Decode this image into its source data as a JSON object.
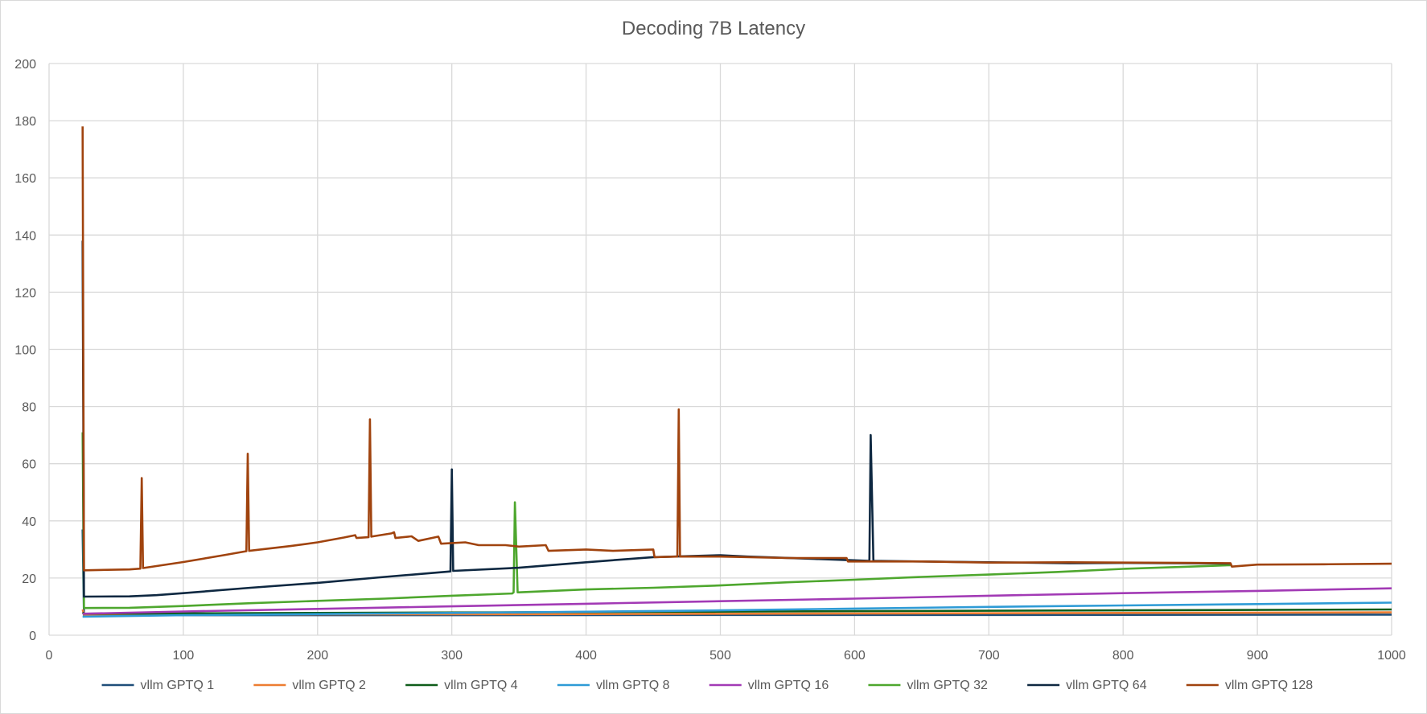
{
  "chart_data": {
    "type": "line",
    "title": "Decoding 7B Latency",
    "xlabel": "",
    "ylabel": "",
    "xlim": [
      0,
      1000
    ],
    "ylim": [
      0,
      200
    ],
    "x_ticks": [
      0,
      100,
      200,
      300,
      400,
      500,
      600,
      700,
      800,
      900,
      1000
    ],
    "y_ticks": [
      0,
      20,
      40,
      60,
      80,
      100,
      120,
      140,
      160,
      180,
      200
    ],
    "grid": true,
    "legend_position": "bottom",
    "series": [
      {
        "name": "vllm GPTQ  1",
        "color": "#1f4e79",
        "points": [
          [
            25,
            37
          ],
          [
            26,
            7
          ],
          [
            100,
            7
          ],
          [
            300,
            7
          ],
          [
            500,
            7.1
          ],
          [
            700,
            7.1
          ],
          [
            1000,
            7.2
          ]
        ]
      },
      {
        "name": "vllm GPTQ  2",
        "color": "#ed7d31",
        "points": [
          [
            25,
            9
          ],
          [
            26,
            7.2
          ],
          [
            200,
            7.3
          ],
          [
            400,
            7.4
          ],
          [
            600,
            7.6
          ],
          [
            800,
            7.8
          ],
          [
            1000,
            8
          ]
        ]
      },
      {
        "name": "vllm GPTQ  4",
        "color": "#0e5c1a",
        "points": [
          [
            25,
            8
          ],
          [
            26,
            7.5
          ],
          [
            200,
            7.8
          ],
          [
            400,
            8.1
          ],
          [
            600,
            8.4
          ],
          [
            800,
            8.7
          ],
          [
            1000,
            9
          ]
        ]
      },
      {
        "name": "vllm GPTQ  8",
        "color": "#2e9bd6",
        "points": [
          [
            25,
            6.5
          ],
          [
            100,
            7
          ],
          [
            200,
            7.4
          ],
          [
            300,
            7.8
          ],
          [
            400,
            8.2
          ],
          [
            500,
            8.7
          ],
          [
            600,
            9.3
          ],
          [
            700,
            9.9
          ],
          [
            800,
            10.4
          ],
          [
            900,
            10.9
          ],
          [
            1000,
            11.4
          ]
        ]
      },
      {
        "name": "vllm GPTQ  16",
        "color": "#a23ab5",
        "points": [
          [
            25,
            7.5
          ],
          [
            100,
            8.3
          ],
          [
            200,
            9.2
          ],
          [
            300,
            10.1
          ],
          [
            400,
            11
          ],
          [
            500,
            11.9
          ],
          [
            600,
            12.8
          ],
          [
            700,
            13.8
          ],
          [
            800,
            14.7
          ],
          [
            900,
            15.5
          ],
          [
            1000,
            16.4
          ]
        ]
      },
      {
        "name": "vllm GPTQ  32",
        "color": "#4ea72e",
        "points": [
          [
            25,
            71
          ],
          [
            26,
            9.5
          ],
          [
            60,
            9.6
          ],
          [
            100,
            10.2
          ],
          [
            150,
            11.2
          ],
          [
            200,
            12
          ],
          [
            250,
            12.8
          ],
          [
            300,
            13.8
          ],
          [
            345,
            14.6
          ],
          [
            346,
            15
          ],
          [
            347,
            46.5
          ],
          [
            349,
            15
          ],
          [
            350,
            15
          ],
          [
            400,
            16
          ],
          [
            450,
            16.6
          ],
          [
            500,
            17.4
          ],
          [
            550,
            18.5
          ],
          [
            600,
            19.4
          ],
          [
            650,
            20.4
          ],
          [
            700,
            21.2
          ],
          [
            750,
            22.1
          ],
          [
            800,
            23.2
          ],
          [
            850,
            24
          ],
          [
            880,
            24.5
          ]
        ]
      },
      {
        "name": "vllm GPTQ  64",
        "color": "#0e2841",
        "points": [
          [
            25,
            138
          ],
          [
            26,
            13.5
          ],
          [
            60,
            13.6
          ],
          [
            80,
            14
          ],
          [
            100,
            14.7
          ],
          [
            150,
            16.6
          ],
          [
            200,
            18.3
          ],
          [
            250,
            20.4
          ],
          [
            299,
            22.3
          ],
          [
            300,
            58
          ],
          [
            301,
            22.5
          ],
          [
            350,
            23.6
          ],
          [
            400,
            25.5
          ],
          [
            450,
            27.3
          ],
          [
            500,
            28
          ],
          [
            520,
            27.5
          ],
          [
            570,
            26.7
          ],
          [
            611,
            26
          ],
          [
            612,
            70
          ],
          [
            614,
            26
          ],
          [
            650,
            25.8
          ],
          [
            700,
            25.5
          ],
          [
            760,
            25.2
          ],
          [
            800,
            25.3
          ],
          [
            880,
            25.1
          ]
        ]
      },
      {
        "name": "vllm GPTQ  128",
        "color": "#a0430e",
        "points": [
          [
            25,
            178
          ],
          [
            26,
            22.7
          ],
          [
            60,
            23
          ],
          [
            68,
            23.3
          ],
          [
            69,
            55
          ],
          [
            70,
            23.5
          ],
          [
            100,
            25.6
          ],
          [
            130,
            28
          ],
          [
            147,
            29.4
          ],
          [
            148,
            63.5
          ],
          [
            149,
            29.5
          ],
          [
            180,
            31.2
          ],
          [
            200,
            32.5
          ],
          [
            220,
            34.2
          ],
          [
            228,
            35
          ],
          [
            229,
            34
          ],
          [
            238,
            34.3
          ],
          [
            239,
            75.5
          ],
          [
            240,
            34.5
          ],
          [
            255,
            35.6
          ],
          [
            257,
            36
          ],
          [
            258,
            34
          ],
          [
            270,
            34.6
          ],
          [
            275,
            33
          ],
          [
            290,
            34.5
          ],
          [
            292,
            32
          ],
          [
            310,
            32.5
          ],
          [
            320,
            31.5
          ],
          [
            340,
            31.5
          ],
          [
            350,
            31
          ],
          [
            370,
            31.5
          ],
          [
            372,
            29.5
          ],
          [
            400,
            30
          ],
          [
            420,
            29.5
          ],
          [
            450,
            30
          ],
          [
            451,
            27.3
          ],
          [
            468,
            27.5
          ],
          [
            469,
            79
          ],
          [
            470,
            27.5
          ],
          [
            500,
            27.5
          ],
          [
            550,
            27
          ],
          [
            594,
            27
          ],
          [
            595,
            25.8
          ],
          [
            650,
            25.8
          ],
          [
            700,
            25.4
          ],
          [
            760,
            25.5
          ],
          [
            800,
            25.4
          ],
          [
            850,
            25.3
          ],
          [
            880,
            25.2
          ],
          [
            881,
            24
          ],
          [
            900,
            24.7
          ],
          [
            950,
            24.8
          ],
          [
            1000,
            25
          ]
        ]
      }
    ]
  }
}
